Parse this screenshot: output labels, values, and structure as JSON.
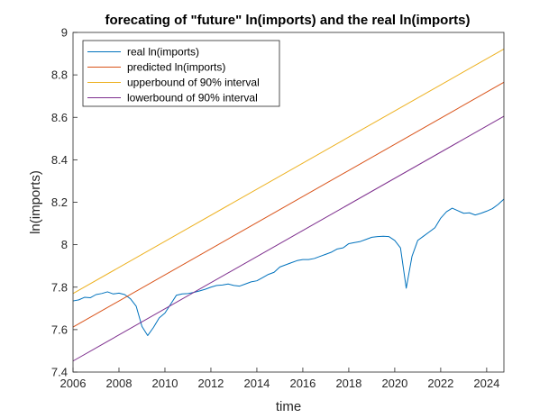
{
  "chart_data": {
    "type": "line",
    "title": "forecating of \"future\" ln(imports) and the real ln(imports)",
    "xlabel": "time",
    "ylabel": "ln(imports)",
    "xlim": [
      2006,
      2024.75
    ],
    "ylim": [
      7.4,
      9.0
    ],
    "xticks": [
      2006,
      2008,
      2010,
      2012,
      2014,
      2016,
      2018,
      2020,
      2022,
      2024
    ],
    "xtick_labels": [
      "2006",
      "2008",
      "2010",
      "2012",
      "2014",
      "2016",
      "2018",
      "2020",
      "2022",
      "2024"
    ],
    "yticks": [
      7.4,
      7.6,
      7.8,
      8.0,
      8.2,
      8.4,
      8.6,
      8.8,
      9.0
    ],
    "ytick_labels": [
      "7.4",
      "7.6",
      "7.8",
      "8",
      "8.2",
      "8.4",
      "8.6",
      "8.8",
      "9"
    ],
    "grid": false,
    "legend_position": "top-left",
    "series": [
      {
        "name": "real ln(imports)",
        "color": "#0072BD",
        "x": [
          2006.0,
          2006.25,
          2006.5,
          2006.75,
          2007.0,
          2007.25,
          2007.5,
          2007.75,
          2008.0,
          2008.25,
          2008.5,
          2008.75,
          2009.0,
          2009.25,
          2009.5,
          2009.75,
          2010.0,
          2010.25,
          2010.5,
          2010.75,
          2011.0,
          2011.25,
          2011.5,
          2011.75,
          2012.0,
          2012.25,
          2012.5,
          2012.75,
          2013.0,
          2013.25,
          2013.5,
          2013.75,
          2014.0,
          2014.25,
          2014.5,
          2014.75,
          2015.0,
          2015.25,
          2015.5,
          2015.75,
          2016.0,
          2016.25,
          2016.5,
          2016.75,
          2017.0,
          2017.25,
          2017.5,
          2017.75,
          2018.0,
          2018.25,
          2018.5,
          2018.75,
          2019.0,
          2019.25,
          2019.5,
          2019.75,
          2020.0,
          2020.25,
          2020.5,
          2020.75,
          2021.0,
          2021.25,
          2021.5,
          2021.75,
          2022.0,
          2022.25,
          2022.5,
          2022.75,
          2023.0,
          2023.25,
          2023.5,
          2023.75,
          2024.0,
          2024.25,
          2024.5,
          2024.75
        ],
        "y": [
          7.735,
          7.74,
          7.752,
          7.75,
          7.765,
          7.77,
          7.778,
          7.768,
          7.772,
          7.765,
          7.745,
          7.71,
          7.615,
          7.572,
          7.61,
          7.655,
          7.678,
          7.72,
          7.762,
          7.768,
          7.77,
          7.775,
          7.782,
          7.79,
          7.8,
          7.808,
          7.81,
          7.815,
          7.808,
          7.805,
          7.815,
          7.825,
          7.83,
          7.845,
          7.86,
          7.87,
          7.895,
          7.905,
          7.915,
          7.925,
          7.93,
          7.93,
          7.935,
          7.945,
          7.955,
          7.965,
          7.98,
          7.985,
          8.005,
          8.01,
          8.015,
          8.025,
          8.035,
          8.038,
          8.04,
          8.038,
          8.02,
          7.985,
          7.795,
          7.945,
          8.02,
          8.04,
          8.06,
          8.08,
          8.125,
          8.155,
          8.172,
          8.16,
          8.148,
          8.15,
          8.14,
          8.148,
          8.158,
          8.17,
          8.19,
          8.215
        ]
      },
      {
        "name": "predicted ln(imports)",
        "color": "#D95319",
        "x": [
          2006.0,
          2024.75
        ],
        "y": [
          7.612,
          8.765
        ]
      },
      {
        "name": "upperbound of 90% interval",
        "color": "#EDB120",
        "x": [
          2006.0,
          2024.75
        ],
        "y": [
          7.77,
          8.922
        ]
      },
      {
        "name": "lowerbound of 90% interval",
        "color": "#7E2F8E",
        "x": [
          2006.0,
          2024.75
        ],
        "y": [
          7.452,
          8.605
        ]
      }
    ]
  }
}
